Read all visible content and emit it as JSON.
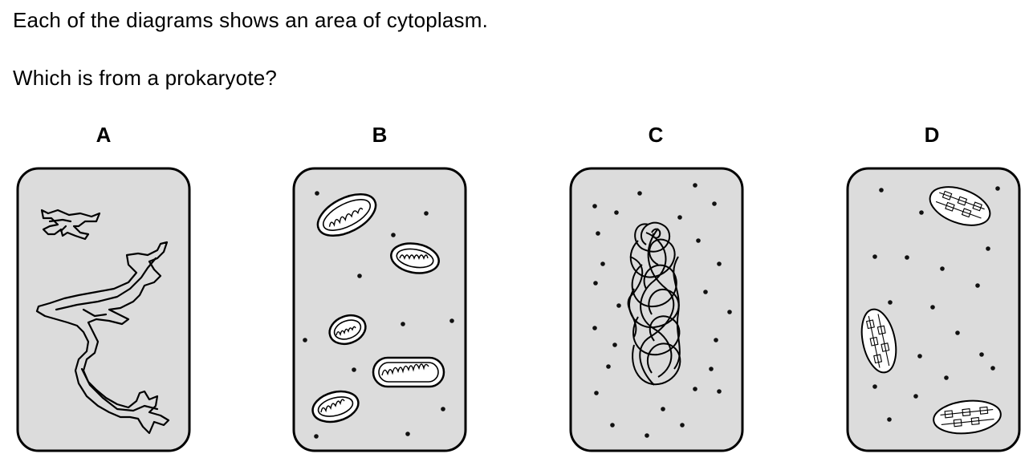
{
  "question": {
    "line1": "Each of the diagrams shows an area of cytoplasm.",
    "line2": "Which is from a prokaryote?"
  },
  "panels": [
    {
      "label": "A",
      "content": "rough-endoplasmic-reticulum"
    },
    {
      "label": "B",
      "content": "mitochondria"
    },
    {
      "label": "C",
      "content": "dna-loop"
    },
    {
      "label": "D",
      "content": "chloroplasts"
    }
  ],
  "colors": {
    "cytoplasm": "#dcdcdc",
    "outline": "#000000"
  }
}
